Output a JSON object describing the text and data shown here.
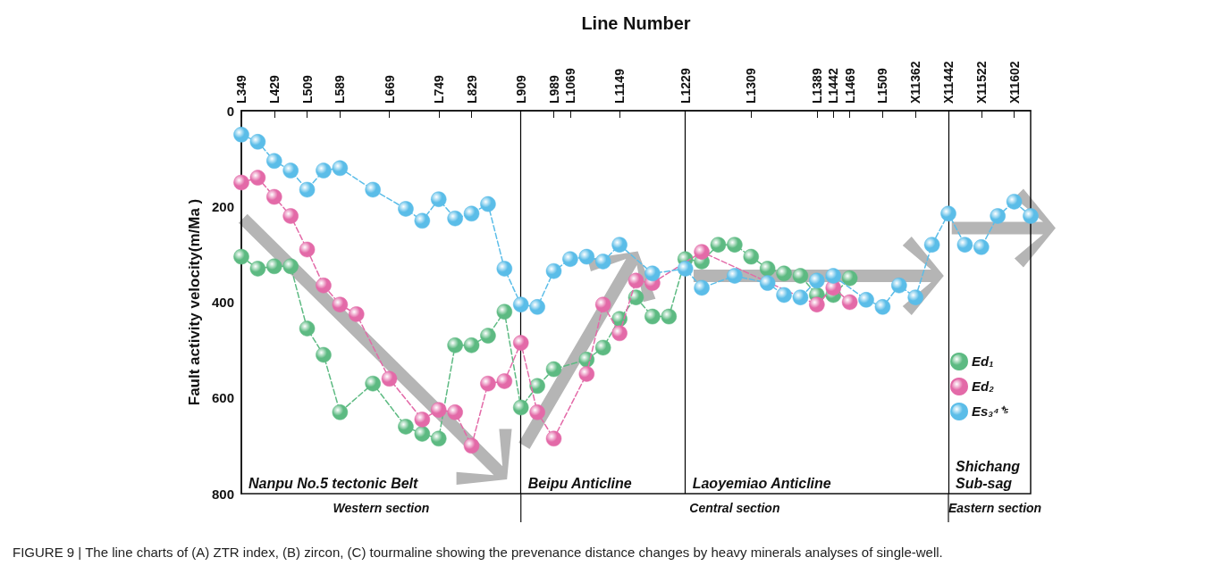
{
  "chart_data": {
    "type": "line",
    "xlabel": "Line Number",
    "ylabel": "Fault activity velocity(m/Ma )",
    "categories": [
      "L349",
      null,
      "L429",
      null,
      "L509",
      null,
      "L589",
      null,
      null,
      "L669",
      null,
      null,
      "L749",
      null,
      "L829",
      null,
      null,
      "L909",
      null,
      "L989",
      "L1069",
      null,
      null,
      "L1149",
      null,
      null,
      null,
      "L1229",
      null,
      null,
      null,
      "L1309",
      null,
      null,
      null,
      "L1389",
      "L1442",
      "L1469",
      null,
      "L1509",
      null,
      "X11362",
      null,
      "X11442",
      null,
      "X11522",
      null,
      "X11602",
      null
    ],
    "ylim": [
      800,
      0
    ],
    "yticks": [
      0,
      200,
      400,
      600,
      800
    ],
    "grid": false,
    "legend": "bottom right",
    "marker": "circle",
    "line_style": "dashed",
    "series": [
      {
        "name": "Ed₁",
        "color": "#5dba82",
        "values": [
          305,
          330,
          325,
          325,
          455,
          510,
          630,
          null,
          570,
          null,
          660,
          675,
          685,
          490,
          490,
          470,
          420,
          620,
          575,
          540,
          null,
          520,
          495,
          435,
          390,
          430,
          430,
          310,
          315,
          280,
          280,
          305,
          330,
          340,
          345,
          385,
          385,
          350,
          null,
          null,
          null,
          null,
          null,
          null,
          null,
          null,
          null,
          null,
          null
        ]
      },
      {
        "name": "Ed₂",
        "color": "#e36aa8",
        "values": [
          150,
          140,
          180,
          220,
          290,
          365,
          405,
          425,
          null,
          560,
          null,
          645,
          625,
          630,
          700,
          570,
          565,
          485,
          630,
          685,
          null,
          550,
          405,
          465,
          355,
          360,
          null,
          null,
          295,
          null,
          null,
          null,
          null,
          null,
          null,
          405,
          370,
          400,
          null,
          null,
          null,
          null,
          null,
          null,
          null,
          null,
          null,
          null,
          null
        ]
      },
      {
        "name": "Es₃⁴⁺⁵",
        "color": "#5bbde8",
        "values": [
          50,
          65,
          105,
          125,
          165,
          125,
          120,
          null,
          165,
          null,
          205,
          230,
          185,
          225,
          215,
          195,
          330,
          405,
          410,
          335,
          310,
          305,
          315,
          280,
          null,
          340,
          null,
          330,
          370,
          null,
          345,
          null,
          360,
          385,
          390,
          355,
          345,
          null,
          395,
          410,
          365,
          390,
          280,
          215,
          280,
          285,
          220,
          190,
          220
        ]
      }
    ],
    "ref_lines": [
      {
        "axis": "x",
        "value": "L909",
        "color": "#000000"
      },
      {
        "axis": "x",
        "value": "L1229",
        "color": "#000000"
      },
      {
        "axis": "x",
        "value": "X11442",
        "color": "#000000"
      }
    ],
    "annotations": [
      "Nanpu No.5 tectonic Belt",
      "Beipu Anticline",
      "Laoyemiao Anticline",
      "Shichang Sub-sag",
      "Western section",
      "Central section",
      "Eastern section",
      "FIGURE 9 | The line charts of (A) ZTR index, (B) zircon, (C) tourmaline showing the prevenance distance changes by heavy minerals analyses of single-well."
    ]
  }
}
